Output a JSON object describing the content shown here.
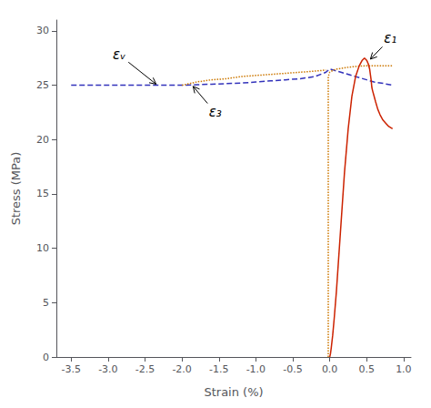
{
  "chart_data": {
    "type": "line",
    "xlabel": "Strain (%)",
    "ylabel": "Stress (MPa)",
    "xlim": [
      -3.7,
      1.1
    ],
    "ylim": [
      0,
      31
    ],
    "xticks": [
      -3.5,
      {
        "value": -3,
        "label": "-3.0"
      },
      -2.5,
      {
        "value": -2,
        "label": "-2.0"
      },
      -1.5,
      {
        "value": -1,
        "label": "-1.0"
      },
      -0.5,
      {
        "value": 0,
        "label": "0.0"
      },
      0.5,
      {
        "value": 1,
        "label": "1.0"
      }
    ],
    "yticks": [
      0,
      5,
      10,
      15,
      20,
      25,
      30
    ],
    "grid": false,
    "series": [
      {
        "color": "#3333bb",
        "line_style": "dashed",
        "x": [
          -3.5,
          -3.3,
          -3.1,
          -2.9,
          -2.7,
          -2.5,
          -2.3,
          -2.1,
          -2.0,
          -1.8,
          -1.6,
          -1.4,
          -1.2,
          -1.0,
          -0.8,
          -0.6,
          -0.4,
          -0.2,
          -0.05,
          0.0,
          0.05,
          0.1,
          0.15,
          0.2,
          0.3,
          0.4,
          0.5,
          0.6,
          0.7,
          0.85
        ],
        "values": [
          25.0,
          25.0,
          25.0,
          25.0,
          25.0,
          25.0,
          25.0,
          25.0,
          25.0,
          25.05,
          25.1,
          25.15,
          25.2,
          25.3,
          25.4,
          25.5,
          25.6,
          25.8,
          26.2,
          26.5,
          26.4,
          26.3,
          26.2,
          26.1,
          25.9,
          25.7,
          25.5,
          25.3,
          25.2,
          25.0
        ]
      },
      {
        "color": "#cc7700",
        "line_style": "dotted",
        "x": [
          -2.0,
          -1.8,
          -1.6,
          -1.4,
          -1.2,
          -1.0,
          -0.8,
          -0.6,
          -0.4,
          -0.2,
          -0.05
        ],
        "values": [
          25.0,
          25.3,
          25.5,
          25.6,
          25.8,
          25.9,
          26.0,
          26.1,
          26.2,
          26.3,
          26.4
        ]
      },
      {
        "color": "#cc7700",
        "line_style": "dotted",
        "x": [
          -0.02,
          -0.02,
          -0.01,
          0.0,
          0.05,
          0.1,
          0.2,
          0.3,
          0.5,
          0.7,
          0.85
        ],
        "values": [
          0.0,
          25.8,
          26.0,
          26.2,
          26.4,
          26.5,
          26.6,
          26.7,
          26.8,
          26.8,
          26.8
        ]
      },
      {
        "color": "#cc2200",
        "line_style": "solid",
        "x": [
          0.0,
          0.01,
          0.02,
          0.04,
          0.06,
          0.09,
          0.12,
          0.16,
          0.2,
          0.25,
          0.3,
          0.35,
          0.4,
          0.44,
          0.47,
          0.5,
          0.52,
          0.54,
          0.56,
          0.57,
          0.58,
          0.6,
          0.62,
          0.65,
          0.68,
          0.72,
          0.76,
          0.8,
          0.85
        ],
        "values": [
          0.0,
          0.3,
          0.8,
          2.0,
          3.5,
          6.0,
          9.0,
          13.0,
          17.0,
          21.0,
          24.0,
          25.8,
          26.8,
          27.3,
          27.5,
          27.3,
          27.0,
          26.5,
          25.5,
          24.8,
          24.5,
          24.0,
          23.5,
          22.8,
          22.3,
          21.8,
          21.5,
          21.2,
          21.0
        ]
      }
    ],
    "annotations": [
      {
        "text": "εᵥ",
        "xy": [
          -2.35,
          25.1
        ],
        "xytext": [
          -2.85,
          27.8
        ]
      },
      {
        "text": "ε₃",
        "xy": [
          -1.85,
          24.9
        ],
        "xytext": [
          -1.55,
          22.5
        ]
      },
      {
        "text": "ε₁",
        "xy": [
          0.55,
          27.4
        ],
        "xytext": [
          0.82,
          29.3
        ]
      }
    ]
  }
}
